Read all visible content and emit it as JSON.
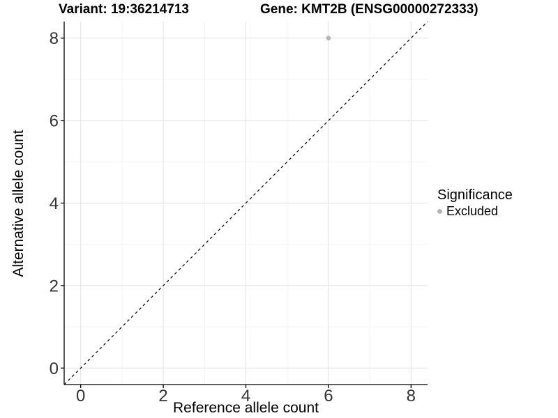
{
  "title": {
    "variant": "Variant: 19:36214713",
    "gene": "Gene: KMT2B (ENSG00000272333)"
  },
  "chart_data": {
    "type": "scatter",
    "title_left": "Variant: 19:36214713",
    "title_right": "Gene: KMT2B (ENSG00000272333)",
    "xlabel": "Reference allele count",
    "ylabel": "Alternative allele count",
    "xlim": [
      -0.4,
      8.4
    ],
    "ylim": [
      -0.4,
      8.4
    ],
    "xticks": [
      0,
      2,
      4,
      6,
      8
    ],
    "yticks": [
      0,
      2,
      4,
      6,
      8
    ],
    "minor_xticks": [
      1,
      3,
      5,
      7
    ],
    "minor_yticks": [
      1,
      3,
      5,
      7
    ],
    "grid": true,
    "points": [
      {
        "x": 6,
        "y": 8,
        "series": "Excluded"
      }
    ],
    "series": [
      {
        "name": "Excluded",
        "color": "#b5b5b5"
      }
    ],
    "reference_line": {
      "type": "identity",
      "slope": 1,
      "intercept": 0,
      "style": "dashed",
      "color": "#000000"
    },
    "legend": {
      "title": "Significance",
      "position": "right",
      "entries": [
        {
          "label": "Excluded",
          "color": "#b5b5b5"
        }
      ]
    }
  },
  "colors": {
    "background": "#ffffff",
    "grid_major": "#e5e5e5",
    "grid_minor": "#f0f0f0",
    "axis_line": "#000000",
    "tick_text": "#333333",
    "point": "#b5b5b5"
  }
}
